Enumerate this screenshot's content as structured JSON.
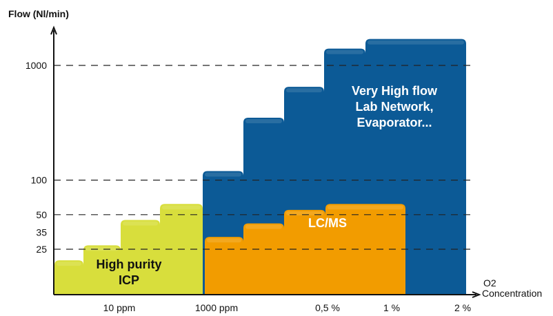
{
  "chart_data": {
    "type": "area",
    "ylabel": "Flow (Nl/min)",
    "xlabel_sub": "O2",
    "xlabel": "Concentration",
    "x_ticks": [
      "10 ppm",
      "1000 ppm",
      "0,5 %",
      "1 %",
      "2 %"
    ],
    "y_ticks": [
      1000,
      100,
      50,
      35,
      25
    ],
    "y_gridlines": [
      1000,
      100,
      50,
      25
    ],
    "grid": "dashed horizontal",
    "scale": "log",
    "regions": [
      {
        "name": "High purity ICP",
        "label_lines": [
          "High purity",
          "ICP"
        ],
        "color": "#d8de3c",
        "steps": [
          {
            "x": "< 10 ppm",
            "flow": 20
          },
          {
            "x": "10 ppm",
            "flow": 27
          },
          {
            "x": "100 ppm",
            "flow": 45
          },
          {
            "x": "1000 ppm",
            "flow": 62
          }
        ]
      },
      {
        "name": "LC/MS",
        "label_lines": [
          "LC/MS"
        ],
        "color": "#f29c00",
        "steps": [
          {
            "x": "1000 ppm",
            "flow": 32
          },
          {
            "x": "0,1 %",
            "flow": 42
          },
          {
            "x": "0,5 %",
            "flow": 55
          },
          {
            "x": "1 %",
            "flow": 62
          }
        ]
      },
      {
        "name": "Very High flow Lab Network, Evaporator...",
        "label_lines": [
          "Very High flow",
          "Lab Network,",
          "Evaporator..."
        ],
        "color": "#0c5a96",
        "steps": [
          {
            "x": "1000 ppm",
            "flow": 120
          },
          {
            "x": "0,1 %",
            "flow": 350
          },
          {
            "x": "0,5 %",
            "flow": 650
          },
          {
            "x": "1 %",
            "flow": 1400
          },
          {
            "x": "2 %",
            "flow": 1700
          }
        ]
      }
    ]
  }
}
